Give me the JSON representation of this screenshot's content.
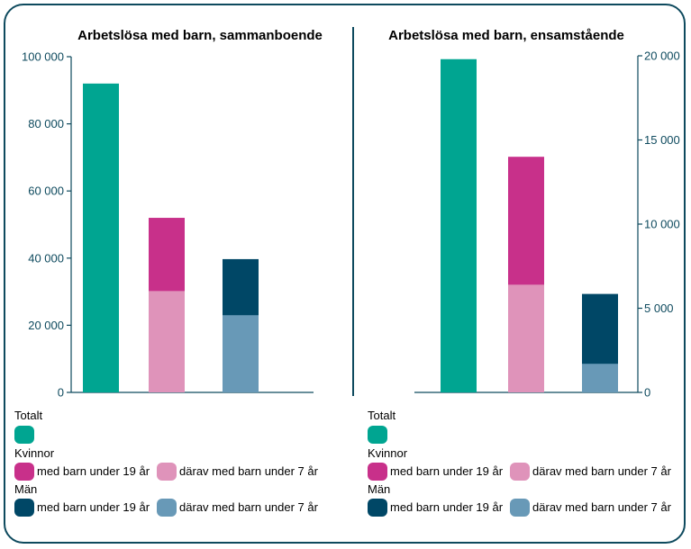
{
  "colors": {
    "totalt": "#00a591",
    "kvinnor_19": "#c8308a",
    "kvinnor_7": "#df93ba",
    "man_19": "#004766",
    "man_7": "#6899b7",
    "axis": "#0e4a5e"
  },
  "chart_data": [
    {
      "type": "bar",
      "title": "Arbetslösa med barn, sammanboende",
      "categories": [
        "Totalt",
        "Kvinnor",
        "Män"
      ],
      "yaxis_side": "left",
      "ylim": [
        0,
        100000
      ],
      "yticks": [
        0,
        20000,
        40000,
        60000,
        80000,
        100000
      ],
      "ytick_labels": [
        "0",
        "20 000",
        "40 000",
        "60 000",
        "80 000",
        "100 000"
      ],
      "series": [
        {
          "name": "Totalt",
          "values": [
            92000,
            null,
            null
          ]
        },
        {
          "name": "med barn under 19 år",
          "values": [
            null,
            52000,
            39700
          ]
        },
        {
          "name": "därav med barn under 7 år",
          "values": [
            null,
            30200,
            23000
          ]
        }
      ]
    },
    {
      "type": "bar",
      "title": "Arbetslösa med barn, ensamstående",
      "categories": [
        "Totalt",
        "Kvinnor",
        "Män"
      ],
      "yaxis_side": "right",
      "ylim": [
        0,
        20000
      ],
      "yticks": [
        0,
        5000,
        10000,
        15000,
        20000
      ],
      "ytick_labels": [
        "0",
        "5 000",
        "10 000",
        "15 000",
        "20 000"
      ],
      "series": [
        {
          "name": "Totalt",
          "values": [
            19800,
            null,
            null
          ]
        },
        {
          "name": "med barn under 19 år",
          "values": [
            null,
            14000,
            5850
          ]
        },
        {
          "name": "därav med barn under 7 år",
          "values": [
            null,
            6400,
            1700
          ]
        }
      ]
    }
  ],
  "legend": {
    "totalt": "Totalt",
    "kvinnor": "Kvinnor",
    "man": "Män",
    "under19": "med barn under 19 år",
    "under7": "därav med barn under 7 år"
  }
}
